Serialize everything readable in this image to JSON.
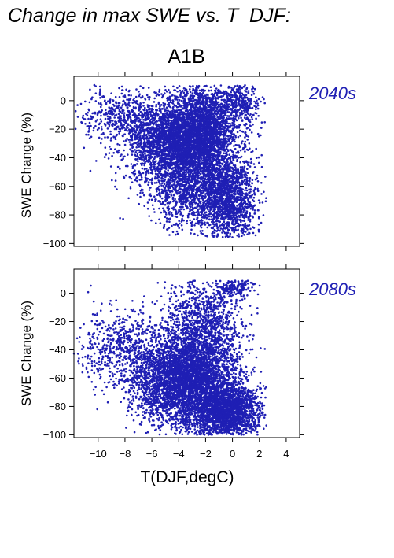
{
  "figure": {
    "title": "Change in max SWE vs. T_DJF:",
    "scenario": "A1B",
    "xlabel": "T(DJF,degC)",
    "point_color": "#1f1fb4"
  },
  "chart_data": [
    {
      "type": "scatter",
      "title": "2040s",
      "xlabel": "",
      "ylabel": "SWE Change (%)",
      "xlim": [
        -11.8,
        5
      ],
      "ylim": [
        -102,
        17
      ],
      "xticks": [
        -10,
        -8,
        -6,
        -4,
        -2,
        0,
        2,
        4
      ],
      "yticks": [
        0,
        -20,
        -40,
        -60,
        -80,
        -100
      ],
      "show_xtick_labels": false,
      "grid": false,
      "legend": "none",
      "clusters": [
        {
          "x": -2.4,
          "y": -22,
          "sx": 1.5,
          "sy": 16,
          "n": 3200
        },
        {
          "x": -4.8,
          "y": -30,
          "sx": 1.6,
          "sy": 13,
          "n": 1800
        },
        {
          "x": -0.4,
          "y": -68,
          "sx": 1.1,
          "sy": 14,
          "n": 1600
        },
        {
          "x": -8.0,
          "y": -10,
          "sx": 1.6,
          "sy": 9,
          "n": 500
        },
        {
          "x": -3.2,
          "y": -62,
          "sx": 1.6,
          "sy": 13,
          "n": 1100
        },
        {
          "x": 0.6,
          "y": -2,
          "sx": 0.8,
          "sy": 6,
          "n": 300
        }
      ],
      "value_range": {
        "x": [
          -11.8,
          2.6
        ],
        "y": [
          -96,
          11
        ]
      }
    },
    {
      "type": "scatter",
      "title": "2080s",
      "xlabel": "T(DJF,degC)",
      "ylabel": "SWE Change (%)",
      "xlim": [
        -11.8,
        5
      ],
      "ylim": [
        -102,
        17
      ],
      "xticks": [
        -10,
        -8,
        -6,
        -4,
        -2,
        0,
        2,
        4
      ],
      "yticks": [
        0,
        -20,
        -40,
        -60,
        -80,
        -100
      ],
      "show_xtick_labels": true,
      "grid": false,
      "legend": "none",
      "clusters": [
        {
          "x": -2.6,
          "y": -58,
          "sx": 1.6,
          "sy": 20,
          "n": 3000
        },
        {
          "x": -4.8,
          "y": -62,
          "sx": 1.6,
          "sy": 15,
          "n": 1800
        },
        {
          "x": -0.4,
          "y": -84,
          "sx": 1.2,
          "sy": 10,
          "n": 2000
        },
        {
          "x": -8.2,
          "y": -38,
          "sx": 1.8,
          "sy": 13,
          "n": 600
        },
        {
          "x": -2.0,
          "y": -15,
          "sx": 1.4,
          "sy": 14,
          "n": 700
        },
        {
          "x": 0.3,
          "y": 5,
          "sx": 0.7,
          "sy": 3,
          "n": 150
        }
      ],
      "value_range": {
        "x": [
          -11.8,
          2.6
        ],
        "y": [
          -100,
          9
        ]
      }
    }
  ]
}
